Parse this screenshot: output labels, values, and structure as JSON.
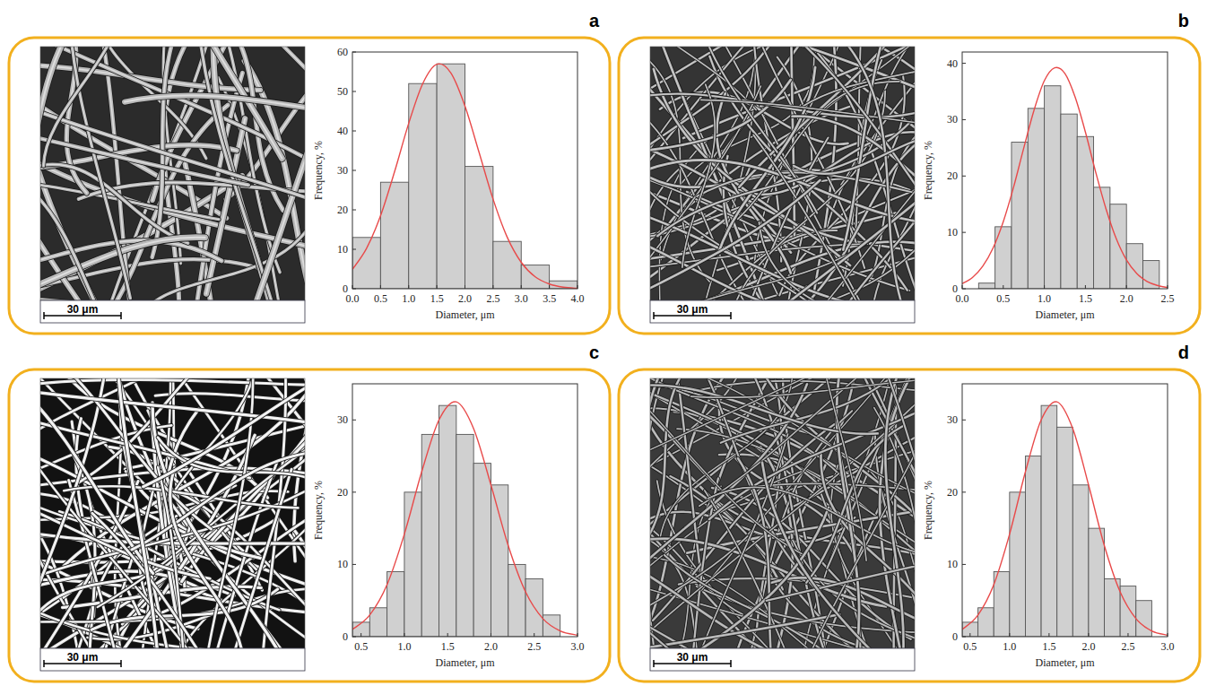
{
  "chart_data": [
    {
      "panel_label": "a",
      "type": "histogram",
      "scale_bar_label": "30 μm",
      "x_label": "Diameter, μm",
      "y_label": "Frequency, %",
      "bins": [
        0,
        0.5,
        1.0,
        1.5,
        2.0,
        2.5,
        3.0,
        3.5,
        4.0
      ],
      "values": [
        13,
        27,
        52,
        57,
        31,
        12,
        6,
        2
      ],
      "color": "#d0d0d0",
      "xlim": [
        0,
        4.0
      ],
      "ylim": [
        0,
        60
      ],
      "xticks": [
        {
          "value": 0,
          "label": "0.0"
        },
        {
          "value": 0.5,
          "label": "0.5"
        },
        {
          "value": 1.0,
          "label": "1.0"
        },
        {
          "value": 1.5,
          "label": "1.5"
        },
        {
          "value": 2.0,
          "label": "2.0"
        },
        {
          "value": 2.5,
          "label": "2.5"
        },
        {
          "value": 3.0,
          "label": "3.0"
        },
        {
          "value": 3.5,
          "label": "3.5"
        },
        {
          "value": 4.0,
          "label": "4.0"
        }
      ],
      "yticks": [
        0,
        10,
        20,
        30,
        40,
        50,
        60
      ],
      "fit": {
        "type": "line",
        "color": "#e84a4a",
        "x": [
          0,
          0.25,
          0.5,
          0.75,
          1.0,
          1.25,
          1.5,
          1.75,
          2.0,
          2.25,
          2.5,
          2.75,
          3.0,
          3.25,
          3.5,
          3.75,
          4.0
        ],
        "values": [
          4.9,
          10.2,
          18.5,
          29.7,
          41.9,
          52.0,
          56.9,
          54.7,
          46.3,
          34.6,
          22.7,
          13.1,
          6.7,
          3.0,
          1.2,
          0.4,
          0.1
        ]
      }
    },
    {
      "panel_label": "b",
      "type": "histogram",
      "scale_bar_label": "30 μm",
      "x_label": "Diameter, μm",
      "y_label": "Frequency, %",
      "bins": [
        0.2,
        0.4,
        0.6,
        0.8,
        1.0,
        1.2,
        1.4,
        1.6,
        1.8,
        2.0,
        2.2,
        2.4
      ],
      "values": [
        1,
        11,
        26,
        32,
        36,
        31,
        27,
        18,
        15,
        8,
        5
      ],
      "color": "#d0d0d0",
      "xlim": [
        0,
        2.5
      ],
      "ylim": [
        0,
        42
      ],
      "xticks": [
        {
          "value": 0,
          "label": "0.0"
        },
        {
          "value": 0.5,
          "label": "0.5"
        },
        {
          "value": 1.0,
          "label": "1.0"
        },
        {
          "value": 1.5,
          "label": "1.5"
        },
        {
          "value": 2.0,
          "label": "2.0"
        },
        {
          "value": 2.5,
          "label": "2.5"
        }
      ],
      "yticks": [
        0,
        10,
        20,
        30,
        40
      ],
      "fit": {
        "type": "line",
        "color": "#e84a4a",
        "x": [
          0,
          0.125,
          0.25,
          0.375,
          0.5,
          0.625,
          0.75,
          0.875,
          1.0,
          1.125,
          1.25,
          1.375,
          1.5,
          1.625,
          1.75,
          1.875,
          2.0,
          2.125,
          2.25,
          2.375,
          2.5
        ],
        "values": [
          0.9,
          2.0,
          4.0,
          7.2,
          11.9,
          18.0,
          25.0,
          31.7,
          36.9,
          39.2,
          38.2,
          34.0,
          27.8,
          20.7,
          14.2,
          8.9,
          5.1,
          2.7,
          1.3,
          0.6,
          0.2
        ]
      }
    },
    {
      "panel_label": "c",
      "type": "histogram",
      "scale_bar_label": "30 μm",
      "x_label": "Diameter, μm",
      "y_label": "Frequency, %",
      "bins": [
        0.4,
        0.6,
        0.8,
        1.0,
        1.2,
        1.4,
        1.6,
        1.8,
        2.0,
        2.2,
        2.4,
        2.6,
        2.8
      ],
      "values": [
        2,
        4,
        9,
        20,
        28,
        32,
        28,
        24,
        21,
        10,
        8,
        3
      ],
      "color": "#d0d0d0",
      "xlim": [
        0.4,
        3.0
      ],
      "ylim": [
        0,
        35
      ],
      "xticks": [
        {
          "value": 0.5,
          "label": "0.5"
        },
        {
          "value": 1.0,
          "label": "1.0"
        },
        {
          "value": 1.5,
          "label": "1.5"
        },
        {
          "value": 2.0,
          "label": "2.0"
        },
        {
          "value": 2.5,
          "label": "2.5"
        },
        {
          "value": 3.0,
          "label": "3.0"
        }
      ],
      "yticks": [
        0,
        10,
        20,
        30
      ],
      "fit": {
        "type": "line",
        "color": "#e84a4a",
        "x": [
          0.4,
          0.6,
          0.8,
          1.0,
          1.2,
          1.4,
          1.6,
          1.8,
          2.0,
          2.2,
          2.4,
          2.6,
          2.8,
          3.0
        ],
        "values": [
          1.0,
          3.0,
          7.2,
          14.2,
          22.8,
          30.0,
          32.5,
          28.8,
          21.0,
          12.6,
          6.2,
          2.5,
          0.8,
          0.2
        ]
      }
    },
    {
      "panel_label": "d",
      "type": "histogram",
      "scale_bar_label": "30 μm",
      "x_label": "Diameter, μm",
      "y_label": "Frequency, %",
      "bins": [
        0.4,
        0.6,
        0.8,
        1.0,
        1.2,
        1.4,
        1.6,
        1.8,
        2.0,
        2.2,
        2.4,
        2.6,
        2.8
      ],
      "values": [
        2,
        4,
        9,
        20,
        25,
        32,
        29,
        21,
        15,
        8,
        7,
        5
      ],
      "color": "#d0d0d0",
      "xlim": [
        0.4,
        3.0
      ],
      "ylim": [
        0,
        35
      ],
      "xticks": [
        {
          "value": 0.5,
          "label": "0.5"
        },
        {
          "value": 1.0,
          "label": "1.0"
        },
        {
          "value": 1.5,
          "label": "1.5"
        },
        {
          "value": 2.0,
          "label": "2.0"
        },
        {
          "value": 2.5,
          "label": "2.5"
        },
        {
          "value": 3.0,
          "label": "3.0"
        }
      ],
      "yticks": [
        0,
        10,
        20,
        30
      ],
      "fit": {
        "type": "line",
        "color": "#e84a4a",
        "x": [
          0.4,
          0.6,
          0.8,
          1.0,
          1.2,
          1.4,
          1.6,
          1.8,
          2.0,
          2.2,
          2.4,
          2.6,
          2.8,
          3.0
        ],
        "values": [
          1.0,
          3.0,
          7.2,
          14.2,
          22.8,
          30.0,
          32.5,
          28.8,
          21.0,
          12.6,
          6.2,
          2.5,
          0.8,
          0.2
        ]
      }
    }
  ]
}
